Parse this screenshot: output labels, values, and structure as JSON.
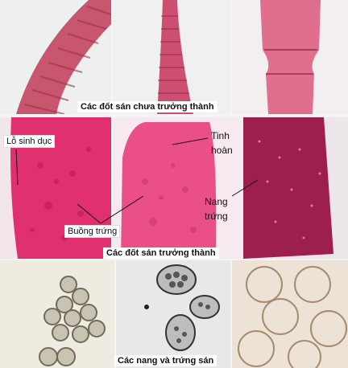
{
  "row1": {
    "caption": "Các đốt sán chưa trưởng thành"
  },
  "row2": {
    "caption": "Các đốt sán trưởng thành",
    "labels": {
      "genital_pore": "Lỗ sinh dục",
      "ovary": "Buồng trứng",
      "testes_line1": "Tinh",
      "testes_line2": "hoàn",
      "egg_cyst_line1": "Nang",
      "egg_cyst_line2": "trứng"
    }
  },
  "row3": {
    "caption": "Các nang và trứng sán"
  }
}
